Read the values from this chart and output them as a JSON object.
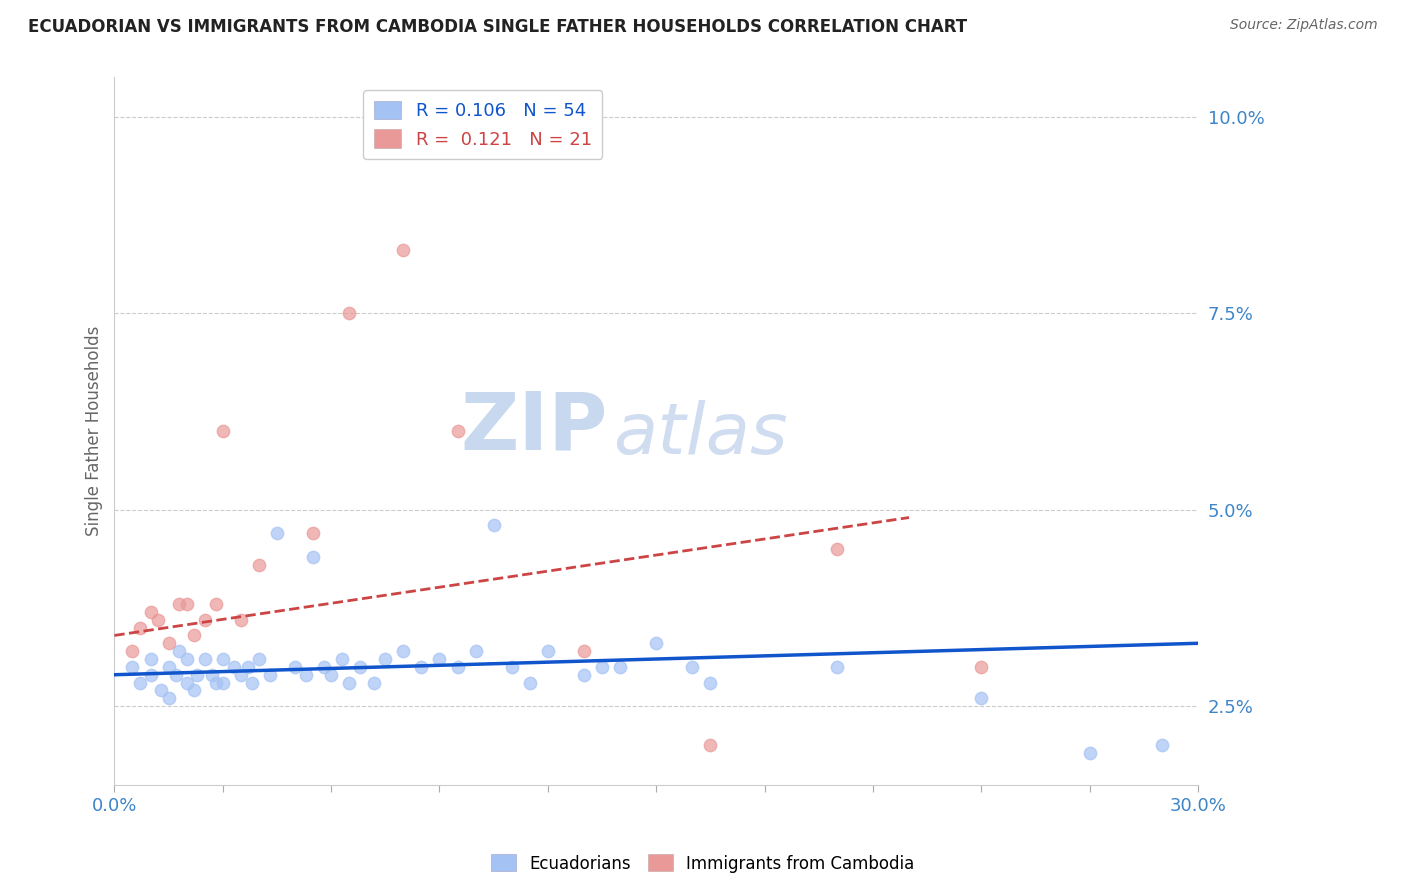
{
  "title": "ECUADORIAN VS IMMIGRANTS FROM CAMBODIA SINGLE FATHER HOUSEHOLDS CORRELATION CHART",
  "source_text": "Source: ZipAtlas.com",
  "ylabel": "Single Father Households",
  "xlim": [
    0.0,
    0.3
  ],
  "ylim": [
    0.015,
    0.105
  ],
  "yticks": [
    0.025,
    0.05,
    0.075,
    0.1
  ],
  "ytick_labels": [
    "2.5%",
    "5.0%",
    "7.5%",
    "10.0%"
  ],
  "blue_color": "#a4c2f4",
  "pink_color": "#ea9999",
  "blue_line_color": "#1155cc",
  "pink_line_color": "#cc4444",
  "R_blue": 0.106,
  "N_blue": 54,
  "R_pink": 0.121,
  "N_pink": 21,
  "legend_label_blue": "Ecuadorians",
  "legend_label_pink": "Immigrants from Cambodia",
  "watermark_zip": "ZIP",
  "watermark_atlas": "atlas",
  "blue_scatter_x": [
    0.005,
    0.007,
    0.01,
    0.01,
    0.013,
    0.015,
    0.015,
    0.017,
    0.018,
    0.02,
    0.02,
    0.022,
    0.023,
    0.025,
    0.027,
    0.028,
    0.03,
    0.03,
    0.033,
    0.035,
    0.037,
    0.038,
    0.04,
    0.043,
    0.045,
    0.05,
    0.053,
    0.055,
    0.058,
    0.06,
    0.063,
    0.065,
    0.068,
    0.072,
    0.075,
    0.08,
    0.085,
    0.09,
    0.095,
    0.1,
    0.105,
    0.11,
    0.115,
    0.12,
    0.13,
    0.135,
    0.14,
    0.15,
    0.16,
    0.165,
    0.2,
    0.24,
    0.27,
    0.29
  ],
  "blue_scatter_y": [
    0.03,
    0.028,
    0.029,
    0.031,
    0.027,
    0.03,
    0.026,
    0.029,
    0.032,
    0.028,
    0.031,
    0.027,
    0.029,
    0.031,
    0.029,
    0.028,
    0.031,
    0.028,
    0.03,
    0.029,
    0.03,
    0.028,
    0.031,
    0.029,
    0.047,
    0.03,
    0.029,
    0.044,
    0.03,
    0.029,
    0.031,
    0.028,
    0.03,
    0.028,
    0.031,
    0.032,
    0.03,
    0.031,
    0.03,
    0.032,
    0.048,
    0.03,
    0.028,
    0.032,
    0.029,
    0.03,
    0.03,
    0.033,
    0.03,
    0.028,
    0.03,
    0.026,
    0.019,
    0.02
  ],
  "pink_scatter_x": [
    0.005,
    0.007,
    0.01,
    0.012,
    0.015,
    0.018,
    0.02,
    0.022,
    0.025,
    0.028,
    0.03,
    0.035,
    0.04,
    0.055,
    0.065,
    0.08,
    0.095,
    0.13,
    0.165,
    0.2,
    0.24
  ],
  "pink_scatter_y": [
    0.032,
    0.035,
    0.037,
    0.036,
    0.033,
    0.038,
    0.038,
    0.034,
    0.036,
    0.038,
    0.06,
    0.036,
    0.043,
    0.047,
    0.075,
    0.083,
    0.06,
    0.032,
    0.02,
    0.045,
    0.03
  ]
}
